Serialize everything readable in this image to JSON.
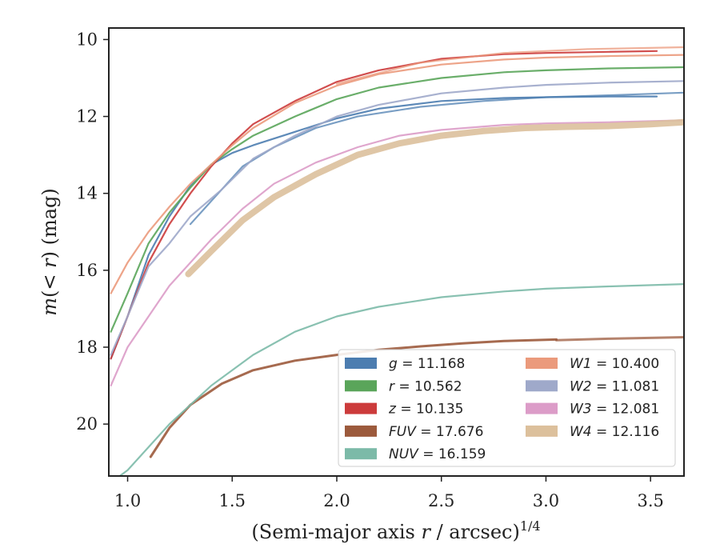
{
  "chart_data": {
    "type": "line",
    "xlabel": "(Semi-major axis r / arcsec)",
    "xlabel_parts": {
      "open": "(Semi-major axis ",
      "var": "r",
      "rest": " / arcsec)",
      "sup": "1/4"
    },
    "ylabel": "m(< r) (mag)",
    "ylabel_parts": {
      "m": "m",
      "open": "(",
      "lt": "< ",
      "r": "r",
      "close": ")",
      "unit": " (mag)"
    },
    "xlim": [
      0.91,
      3.66
    ],
    "ylim": [
      21.35,
      9.7
    ],
    "y_inverted": true,
    "grid": false,
    "legend_position": "lower-right",
    "xticks": [
      {
        "v": 1.0,
        "label": "1.0"
      },
      {
        "v": 1.5,
        "label": "1.5"
      },
      {
        "v": 2.0,
        "label": "2.0"
      },
      {
        "v": 2.5,
        "label": "2.5"
      },
      {
        "v": 3.0,
        "label": "3.0"
      },
      {
        "v": 3.5,
        "label": "3.5"
      }
    ],
    "yticks": [
      {
        "v": 10,
        "label": "10"
      },
      {
        "v": 12,
        "label": "12"
      },
      {
        "v": 14,
        "label": "14"
      },
      {
        "v": 16,
        "label": "16"
      },
      {
        "v": 18,
        "label": "18"
      },
      {
        "v": 20,
        "label": "20"
      }
    ],
    "series": [
      {
        "key": "g",
        "name": "g",
        "value": "11.168",
        "color": "#4c7db0",
        "x": [
          0.92,
          1.0,
          1.1,
          1.2,
          1.3,
          1.4,
          1.5,
          1.6,
          1.8,
          2.0,
          2.2,
          2.5,
          2.8,
          3.0,
          3.3,
          3.53
        ],
        "y": [
          18.3,
          17.2,
          15.6,
          14.6,
          13.8,
          13.25,
          12.95,
          12.75,
          12.4,
          12.05,
          11.8,
          11.6,
          11.52,
          11.5,
          11.48,
          11.48
        ]
      },
      {
        "key": "g_outer",
        "legend": false,
        "color": "#4c7db0",
        "x": [
          1.3,
          1.4,
          1.55,
          1.7,
          1.9,
          2.1,
          2.4,
          2.7,
          3.0,
          3.3,
          3.66
        ],
        "y": [
          14.8,
          14.2,
          13.3,
          12.8,
          12.3,
          12.0,
          11.75,
          11.6,
          11.5,
          11.45,
          11.38
        ]
      },
      {
        "key": "r",
        "name": "r",
        "value": "10.562",
        "color": "#5aa55a",
        "x": [
          0.92,
          1.0,
          1.1,
          1.2,
          1.3,
          1.4,
          1.5,
          1.6,
          1.8,
          2.0,
          2.2,
          2.5,
          2.8,
          3.0,
          3.3,
          3.66
        ],
        "y": [
          17.6,
          16.6,
          15.3,
          14.5,
          13.85,
          13.25,
          12.85,
          12.5,
          12.0,
          11.55,
          11.25,
          11.0,
          10.85,
          10.8,
          10.75,
          10.72
        ]
      },
      {
        "key": "z",
        "name": "z",
        "value": "10.135",
        "color": "#cc3b3b",
        "x": [
          0.92,
          1.0,
          1.1,
          1.2,
          1.3,
          1.4,
          1.5,
          1.6,
          1.8,
          2.0,
          2.2,
          2.5,
          2.8,
          3.0,
          3.3,
          3.53
        ],
        "y": [
          18.3,
          17.2,
          15.8,
          14.8,
          14.0,
          13.3,
          12.7,
          12.2,
          11.6,
          11.1,
          10.8,
          10.5,
          10.38,
          10.35,
          10.32,
          10.3
        ]
      },
      {
        "key": "W1",
        "name": "W1",
        "value": "10.400",
        "color": "#eb9a7c",
        "x": [
          0.92,
          1.0,
          1.1,
          1.2,
          1.3,
          1.4,
          1.5,
          1.6,
          1.8,
          2.0,
          2.2,
          2.5,
          2.8,
          3.0,
          3.3,
          3.66
        ],
        "y": [
          16.6,
          15.8,
          15.0,
          14.35,
          13.75,
          13.25,
          12.75,
          12.3,
          11.65,
          11.2,
          10.9,
          10.65,
          10.52,
          10.47,
          10.43,
          10.4
        ]
      },
      {
        "key": "W1_outer",
        "legend": false,
        "color": "#eb9a7c",
        "x": [
          2.0,
          2.4,
          2.8,
          3.2,
          3.66
        ],
        "y": [
          11.15,
          10.6,
          10.35,
          10.25,
          10.2
        ]
      },
      {
        "key": "W2",
        "name": "W2",
        "value": "11.081",
        "color": "#9fa9ca",
        "x": [
          0.92,
          1.0,
          1.1,
          1.2,
          1.3,
          1.45,
          1.6,
          1.8,
          2.0,
          2.2,
          2.5,
          2.8,
          3.0,
          3.3,
          3.66
        ],
        "y": [
          18.2,
          17.2,
          15.9,
          15.3,
          14.6,
          13.9,
          13.1,
          12.5,
          12.0,
          11.7,
          11.4,
          11.25,
          11.18,
          11.12,
          11.08
        ]
      },
      {
        "key": "W3",
        "name": "W3",
        "value": "12.081",
        "color": "#dc9cc8",
        "x": [
          0.92,
          1.0,
          1.1,
          1.2,
          1.3,
          1.4,
          1.55,
          1.7,
          1.9,
          2.1,
          2.3,
          2.5,
          2.8,
          3.0,
          3.3,
          3.66
        ],
        "y": [
          19.0,
          18.0,
          17.2,
          16.4,
          15.8,
          15.2,
          14.4,
          13.75,
          13.2,
          12.8,
          12.5,
          12.35,
          12.22,
          12.18,
          12.15,
          12.1
        ]
      },
      {
        "key": "W4",
        "name": "W4",
        "value": "12.116",
        "color": "#dcc09c",
        "x": [
          1.29,
          1.4,
          1.55,
          1.7,
          1.9,
          2.1,
          2.3,
          2.5,
          2.7,
          2.9,
          3.1,
          3.3,
          3.5,
          3.66
        ],
        "y": [
          16.1,
          15.5,
          14.7,
          14.1,
          13.5,
          13.0,
          12.7,
          12.5,
          12.38,
          12.3,
          12.27,
          12.25,
          12.2,
          12.15
        ]
      },
      {
        "key": "FUV",
        "name": "FUV",
        "value": "17.676",
        "color": "#9c5a3c",
        "x": [
          1.11,
          1.2,
          1.3,
          1.45,
          1.6,
          1.8,
          2.0,
          2.2,
          2.4,
          2.6,
          2.8,
          3.05
        ],
        "y": [
          20.85,
          20.1,
          19.5,
          18.95,
          18.6,
          18.35,
          18.2,
          18.07,
          17.98,
          17.9,
          17.84,
          17.8
        ]
      },
      {
        "key": "FUV_outer",
        "legend": false,
        "color": "#9c5a3c",
        "x": [
          3.05,
          3.3,
          3.66
        ],
        "y": [
          17.82,
          17.78,
          17.74
        ]
      },
      {
        "key": "NUV",
        "name": "NUV",
        "value": "16.159",
        "color": "#7cbaa8",
        "x": [
          0.95,
          1.0,
          1.1,
          1.2,
          1.3,
          1.4,
          1.5,
          1.6,
          1.8,
          2.0,
          2.2,
          2.5,
          2.8,
          3.0,
          3.3,
          3.66
        ],
        "y": [
          21.4,
          21.2,
          20.6,
          20.0,
          19.5,
          19.0,
          18.6,
          18.2,
          17.6,
          17.2,
          16.95,
          16.7,
          16.55,
          16.48,
          16.42,
          16.36
        ]
      }
    ],
    "legend_columns": [
      [
        "g",
        "r",
        "z",
        "FUV",
        "NUV"
      ],
      [
        "W1",
        "W2",
        "W3",
        "W4"
      ]
    ]
  }
}
